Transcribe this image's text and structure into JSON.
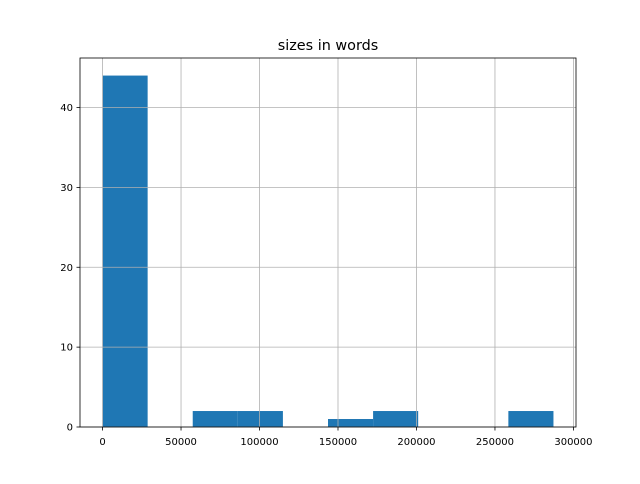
{
  "chart_data": {
    "type": "bar",
    "subtype": "histogram",
    "title": "sizes in words",
    "xlabel": "",
    "ylabel": "",
    "bin_edges": [
      0,
      28726,
      57452,
      86178,
      114904,
      143630,
      172356,
      201082,
      229808,
      258534,
      287260
    ],
    "counts": [
      44,
      0,
      2,
      2,
      0,
      1,
      2,
      0,
      0,
      2
    ],
    "xlim": [
      -14363,
      301623
    ],
    "ylim": [
      0,
      46.2
    ],
    "xticks": [
      0,
      50000,
      100000,
      150000,
      200000,
      250000,
      300000
    ],
    "yticks": [
      0,
      10,
      20,
      30,
      40
    ],
    "grid": true,
    "bar_color": "#1f77b4",
    "grid_color": "#b0b0b0"
  }
}
